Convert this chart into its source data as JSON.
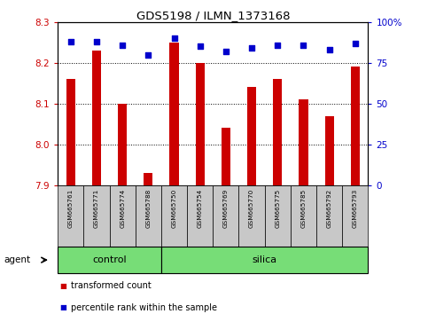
{
  "title": "GDS5198 / ILMN_1373168",
  "categories": [
    "GSM665761",
    "GSM665771",
    "GSM665774",
    "GSM665788",
    "GSM665750",
    "GSM665754",
    "GSM665769",
    "GSM665770",
    "GSM665775",
    "GSM665785",
    "GSM665792",
    "GSM665793"
  ],
  "bar_values": [
    8.16,
    8.23,
    8.1,
    7.93,
    8.25,
    8.2,
    8.04,
    8.14,
    8.16,
    8.11,
    8.07,
    8.19
  ],
  "percentile_values": [
    88,
    88,
    86,
    80,
    90,
    85,
    82,
    84,
    86,
    86,
    83,
    87
  ],
  "bar_color": "#cc0000",
  "percentile_color": "#0000cc",
  "ylim_left": [
    7.9,
    8.3
  ],
  "ylim_right": [
    0,
    100
  ],
  "yticks_left": [
    7.9,
    8.0,
    8.1,
    8.2,
    8.3
  ],
  "yticks_right": [
    0,
    25,
    50,
    75,
    100
  ],
  "control_group": [
    "GSM665761",
    "GSM665771",
    "GSM665774",
    "GSM665788"
  ],
  "silica_group": [
    "GSM665750",
    "GSM665754",
    "GSM665769",
    "GSM665770",
    "GSM665775",
    "GSM665785",
    "GSM665792",
    "GSM665793"
  ],
  "group_color": "#77dd77",
  "agent_label": "agent",
  "control_label": "control",
  "silica_label": "silica",
  "legend_bar_label": "transformed count",
  "legend_pct_label": "percentile rank within the sample",
  "background_color": "#ffffff",
  "tick_label_color_left": "#cc0000",
  "tick_label_color_right": "#0000cc",
  "bar_bottom": 7.9,
  "grid_color": "#000000",
  "xticklabel_bg": "#c8c8c8"
}
